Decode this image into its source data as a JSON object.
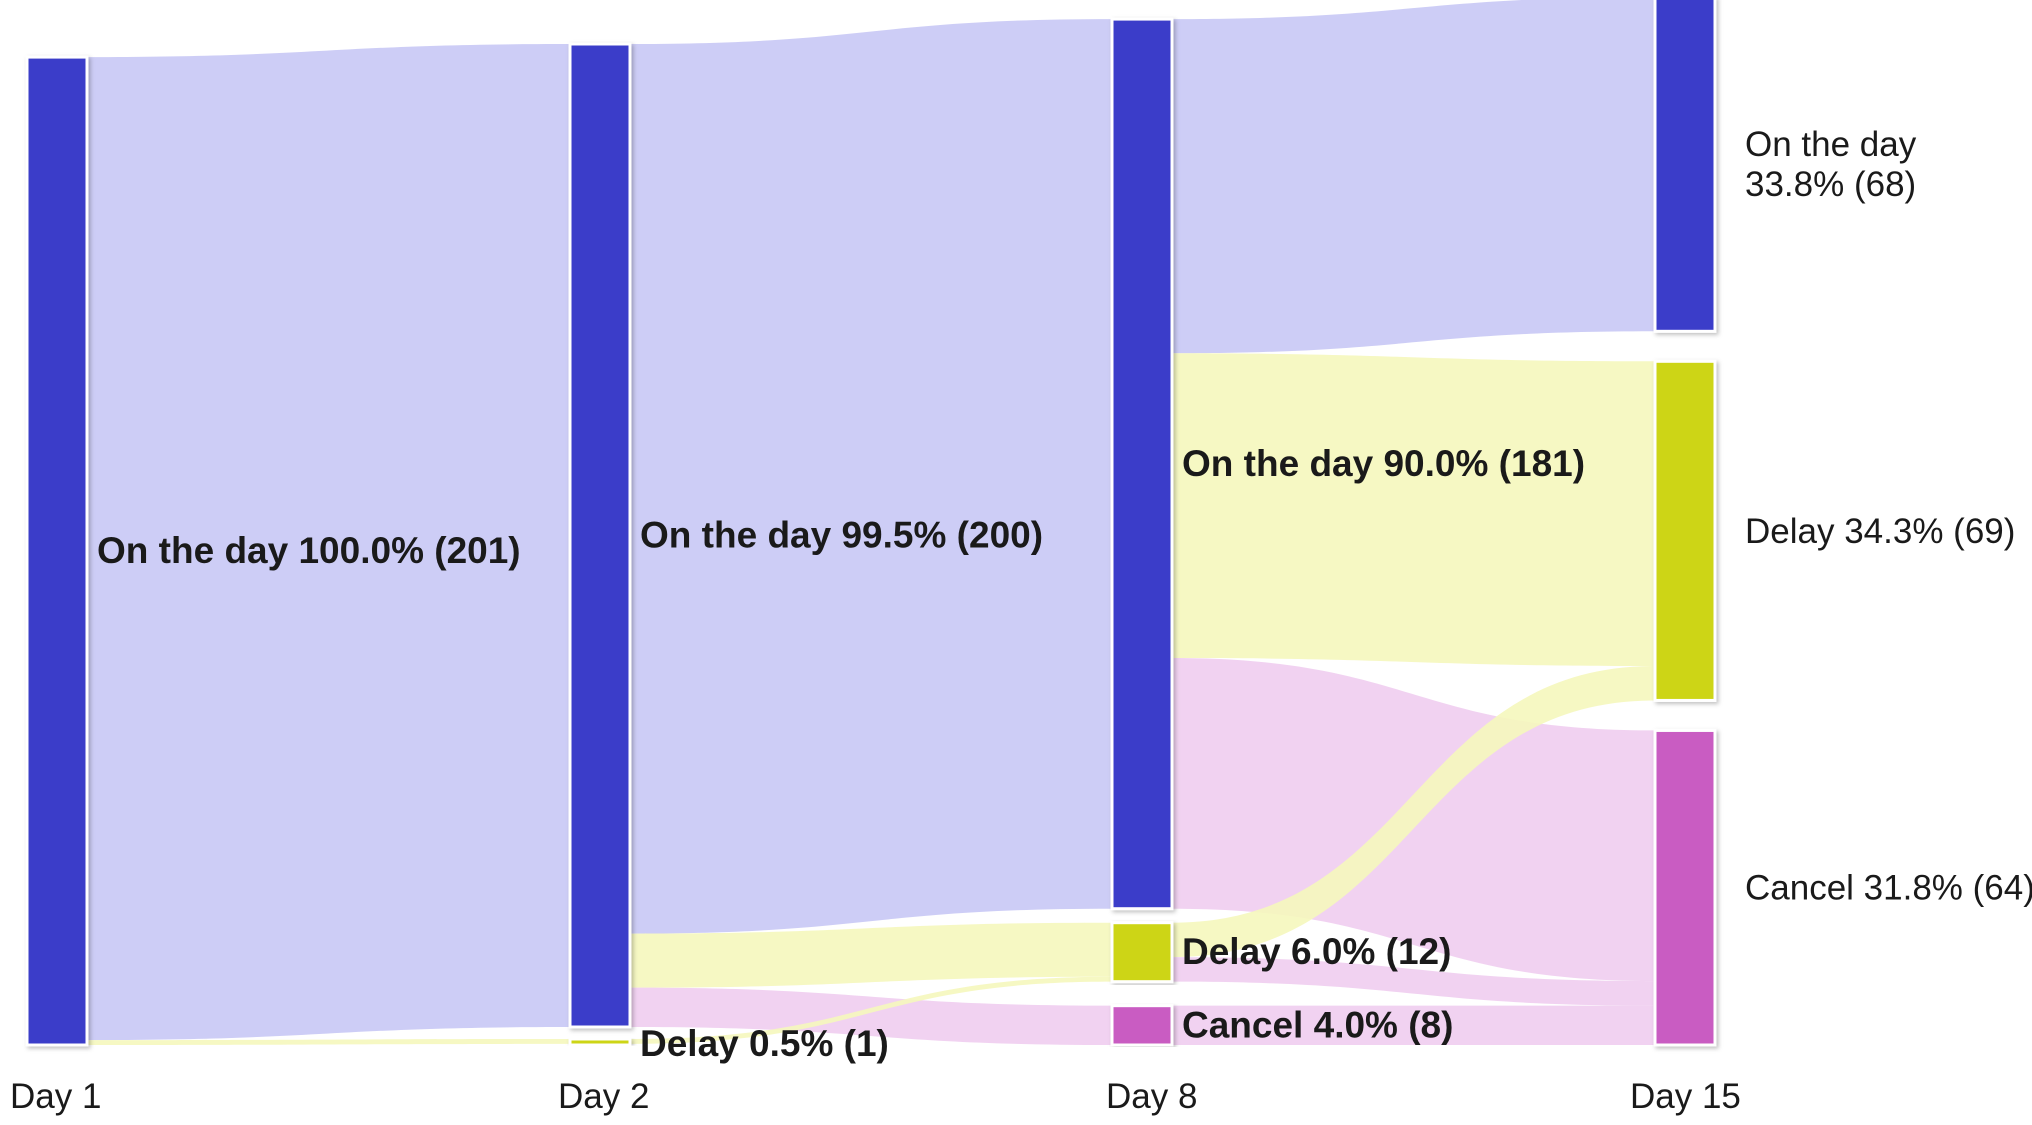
{
  "chart_data": {
    "type": "sankey",
    "stages": [
      "Day 1",
      "Day 2",
      "Day 8",
      "Day 15"
    ],
    "nodes": [
      {
        "id": "d1_on",
        "stage": 0,
        "category": "On the day",
        "value": 201,
        "label_lines": [
          "On the day 100.0% (201)"
        ],
        "label_style": "bold"
      },
      {
        "id": "d2_on",
        "stage": 1,
        "category": "On the day",
        "value": 200,
        "label_lines": [
          "On the day 99.5% (200)"
        ],
        "label_style": "bold"
      },
      {
        "id": "d2_delay",
        "stage": 1,
        "category": "Delay",
        "value": 1,
        "label_lines": [
          "Delay 0.5% (1)"
        ],
        "label_style": "bold"
      },
      {
        "id": "d8_on",
        "stage": 2,
        "category": "On the day",
        "value": 181,
        "label_lines": [
          "On the day 90.0% (181)"
        ],
        "label_style": "bold"
      },
      {
        "id": "d8_delay",
        "stage": 2,
        "category": "Delay",
        "value": 12,
        "label_lines": [
          "Delay 6.0% (12)"
        ],
        "label_style": "bold"
      },
      {
        "id": "d8_cancel",
        "stage": 2,
        "category": "Cancel",
        "value": 8,
        "label_lines": [
          "Cancel 4.0% (8)"
        ],
        "label_style": "bold"
      },
      {
        "id": "d15_on",
        "stage": 3,
        "category": "On the day",
        "value": 68,
        "label_lines": [
          "On the day",
          "33.8% (68)"
        ],
        "label_style": "normal"
      },
      {
        "id": "d15_delay",
        "stage": 3,
        "category": "Delay",
        "value": 69,
        "label_lines": [
          "Delay 34.3% (69)"
        ],
        "label_style": "normal"
      },
      {
        "id": "d15_cancel",
        "stage": 3,
        "category": "Cancel",
        "value": 64,
        "label_lines": [
          "Cancel 31.8% (64)"
        ],
        "label_style": "normal"
      }
    ],
    "links": [
      {
        "source": "d1_on",
        "target": "d2_on",
        "value": 200
      },
      {
        "source": "d1_on",
        "target": "d2_delay",
        "value": 1
      },
      {
        "source": "d2_on",
        "target": "d8_on",
        "value": 181
      },
      {
        "source": "d2_on",
        "target": "d8_delay",
        "value": 11
      },
      {
        "source": "d2_on",
        "target": "d8_cancel",
        "value": 8
      },
      {
        "source": "d2_delay",
        "target": "d8_delay",
        "value": 1
      },
      {
        "source": "d8_on",
        "target": "d15_on",
        "value": 68
      },
      {
        "source": "d8_on",
        "target": "d15_delay",
        "value": 62
      },
      {
        "source": "d8_on",
        "target": "d15_cancel",
        "value": 51
      },
      {
        "source": "d8_delay",
        "target": "d15_delay",
        "value": 7
      },
      {
        "source": "d8_delay",
        "target": "d15_cancel",
        "value": 5
      },
      {
        "source": "d8_cancel",
        "target": "d15_cancel",
        "value": 8
      }
    ],
    "colors": {
      "On the day": {
        "node": "#3b3dc9",
        "link": "#c8c8f5"
      },
      "Delay": {
        "node": "#cdd517",
        "link": "#f5f7bc"
      },
      "Cancel": {
        "node": "#c95cc2",
        "link": "#f0cdef"
      }
    }
  }
}
